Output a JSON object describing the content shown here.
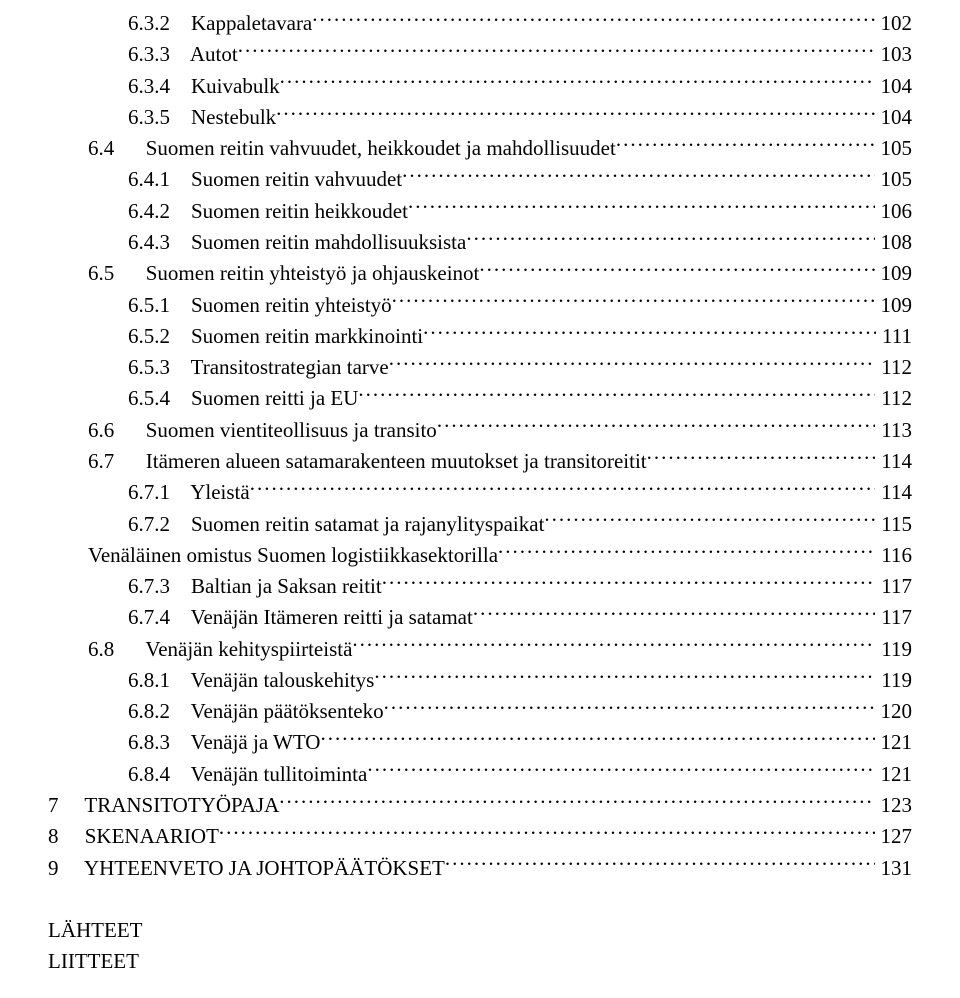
{
  "font_family": "Times New Roman",
  "base_font_size_pt": 16,
  "text_color": "#000000",
  "background_color": "#ffffff",
  "toc": [
    {
      "indent": 2,
      "label": "6.3.2    Kappaletavara",
      "page": "102"
    },
    {
      "indent": 2,
      "label": "6.3.3    Autot",
      "page": "103"
    },
    {
      "indent": 2,
      "label": "6.3.4    Kuivabulk",
      "page": "104"
    },
    {
      "indent": 2,
      "label": "6.3.5    Nestebulk",
      "page": "104"
    },
    {
      "indent": 1,
      "label": "6.4      Suomen reitin vahvuudet, heikkoudet ja mahdollisuudet",
      "page": "105"
    },
    {
      "indent": 2,
      "label": "6.4.1    Suomen reitin vahvuudet",
      "page": "105"
    },
    {
      "indent": 2,
      "label": "6.4.2    Suomen reitin heikkoudet",
      "page": "106"
    },
    {
      "indent": 2,
      "label": "6.4.3    Suomen reitin mahdollisuuksista",
      "page": "108"
    },
    {
      "indent": 1,
      "label": "6.5      Suomen reitin yhteistyö ja ohjauskeinot",
      "page": "109"
    },
    {
      "indent": 2,
      "label": "6.5.1    Suomen reitin yhteistyö",
      "page": "109"
    },
    {
      "indent": 2,
      "label": "6.5.2    Suomen reitin markkinointi",
      "page": "111"
    },
    {
      "indent": 2,
      "label": "6.5.3    Transitostrategian tarve",
      "page": "112"
    },
    {
      "indent": 2,
      "label": "6.5.4    Suomen reitti ja EU",
      "page": "112"
    },
    {
      "indent": 1,
      "label": "6.6      Suomen vientiteollisuus ja transito",
      "page": "113"
    },
    {
      "indent": 1,
      "label": "6.7      Itämeren alueen satamarakenteen muutokset ja transitoreitit",
      "page": "114"
    },
    {
      "indent": 2,
      "label": "6.7.1    Yleistä",
      "page": "114"
    },
    {
      "indent": 2,
      "label": "6.7.2    Suomen reitin satamat ja rajanylityspaikat",
      "page": "115"
    },
    {
      "indent": 1,
      "label": "Venäläinen omistus Suomen logistiikkasektorilla",
      "page": "116"
    },
    {
      "indent": 2,
      "label": "6.7.3    Baltian ja Saksan reitit",
      "page": "117"
    },
    {
      "indent": 2,
      "label": "6.7.4    Venäjän Itämeren reitti ja satamat",
      "page": "117"
    },
    {
      "indent": 1,
      "label": "6.8      Venäjän kehityspiirteistä",
      "page": "119"
    },
    {
      "indent": 2,
      "label": "6.8.1    Venäjän talouskehitys",
      "page": "119"
    },
    {
      "indent": 2,
      "label": "6.8.2    Venäjän päätöksenteko",
      "page": "120"
    },
    {
      "indent": 2,
      "label": "6.8.3    Venäjä ja WTO",
      "page": "121"
    },
    {
      "indent": 2,
      "label": "6.8.4    Venäjän tullitoiminta",
      "page": "121"
    },
    {
      "indent": 0,
      "label": "7     TRANSITOTYÖPAJA",
      "page": "123"
    },
    {
      "indent": 0,
      "label": "8     SKENAARIOT",
      "page": "127"
    },
    {
      "indent": 0,
      "label": "9     YHTEENVETO JA JOHTOPÄÄTÖKSET",
      "page": "131"
    }
  ],
  "footer_lines": [
    "LÄHTEET",
    "LIITTEET"
  ]
}
